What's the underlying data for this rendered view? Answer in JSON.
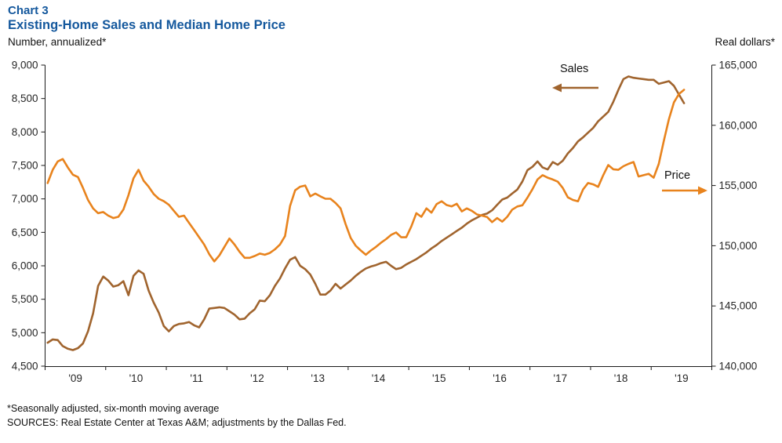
{
  "header": {
    "chart_label": "Chart 3",
    "title": "Existing-Home Sales and Median Home Price",
    "left_axis_unit": "Number, annualized*",
    "right_axis_unit": "Real dollars*"
  },
  "footnotes": {
    "line1": "*Seasonally adjusted, six-month moving average",
    "line2": "SOURCES: Real Estate Center at Texas A&M; adjustments by the Dallas Fed."
  },
  "annotations": {
    "sales": {
      "label": "Sales",
      "arrow_direction": "left"
    },
    "price": {
      "label": "Price",
      "arrow_direction": "right"
    }
  },
  "colors": {
    "title_blue": "#14589D",
    "sales_brown": "#A0642E",
    "price_orange": "#E8831D",
    "axis": "#1a1a1a",
    "tick_text": "#262626"
  },
  "chart_data": {
    "type": "line",
    "title": "Existing-Home Sales and Median Home Price",
    "frequency": "monthly",
    "start": "2009-01",
    "end": "2019-07",
    "x_axis": {
      "tick_labels": [
        "'09",
        "'10",
        "'11",
        "'12",
        "'13",
        "'14",
        "'15",
        "'16",
        "'17",
        "'18",
        "'19"
      ],
      "span_months": 132
    },
    "left_axis": {
      "label": "Number, annualized*",
      "min": 4500,
      "max": 9000,
      "step": 500
    },
    "right_axis": {
      "label": "Real dollars*",
      "min": 140000,
      "max": 165000,
      "step": 5000
    },
    "grid": false,
    "legend": "arrow annotations in plot",
    "series": [
      {
        "name": "Sales",
        "axis": "left",
        "values": [
          4850,
          4900,
          4890,
          4800,
          4760,
          4740,
          4770,
          4840,
          5020,
          5290,
          5700,
          5840,
          5780,
          5690,
          5710,
          5770,
          5560,
          5850,
          5930,
          5880,
          5630,
          5450,
          5300,
          5100,
          5020,
          5100,
          5130,
          5140,
          5160,
          5110,
          5080,
          5200,
          5360,
          5370,
          5380,
          5370,
          5320,
          5270,
          5200,
          5210,
          5290,
          5350,
          5480,
          5470,
          5560,
          5700,
          5810,
          5960,
          6090,
          6130,
          6000,
          5950,
          5870,
          5730,
          5570,
          5570,
          5630,
          5730,
          5660,
          5720,
          5780,
          5850,
          5910,
          5960,
          5990,
          6010,
          6040,
          6060,
          6000,
          5950,
          5970,
          6020,
          6060,
          6100,
          6150,
          6200,
          6260,
          6310,
          6370,
          6420,
          6470,
          6520,
          6570,
          6630,
          6680,
          6720,
          6760,
          6780,
          6830,
          6910,
          6990,
          7020,
          7080,
          7140,
          7260,
          7430,
          7480,
          7560,
          7470,
          7440,
          7550,
          7510,
          7570,
          7680,
          7760,
          7860,
          7920,
          7990,
          8060,
          8160,
          8230,
          8300,
          8450,
          8630,
          8790,
          8830,
          8810,
          8800,
          8790,
          8780,
          8780,
          8720,
          8740,
          8760,
          8690,
          8560,
          8430
        ]
      },
      {
        "name": "Price",
        "axis": "right",
        "values": [
          155200,
          156300,
          157000,
          157200,
          156500,
          155900,
          155700,
          154800,
          153800,
          153100,
          152700,
          152800,
          152500,
          152300,
          152400,
          153000,
          154200,
          155600,
          156300,
          155400,
          154900,
          154300,
          153900,
          153700,
          153400,
          152900,
          152400,
          152500,
          151900,
          151300,
          150700,
          150100,
          149300,
          148700,
          149200,
          149900,
          150600,
          150100,
          149500,
          149000,
          149000,
          149150,
          149350,
          149250,
          149400,
          149700,
          150100,
          150800,
          153300,
          154600,
          154900,
          155000,
          154100,
          154330,
          154100,
          153900,
          153900,
          153550,
          153100,
          151800,
          150650,
          150000,
          149600,
          149250,
          149600,
          149900,
          150250,
          150550,
          150900,
          151100,
          150700,
          150700,
          151600,
          152700,
          152400,
          153100,
          152750,
          153450,
          153690,
          153380,
          153270,
          153480,
          152850,
          153100,
          152900,
          152600,
          152500,
          152390,
          151960,
          152300,
          152000,
          152400,
          153000,
          153260,
          153360,
          154000,
          154700,
          155500,
          155860,
          155650,
          155500,
          155320,
          154800,
          154020,
          153800,
          153690,
          154670,
          155210,
          155100,
          154890,
          155860,
          156700,
          156350,
          156300,
          156600,
          156800,
          156950,
          155750,
          155860,
          155970,
          155650,
          156800,
          158700,
          160500,
          161900,
          162600,
          162950
        ]
      }
    ]
  }
}
